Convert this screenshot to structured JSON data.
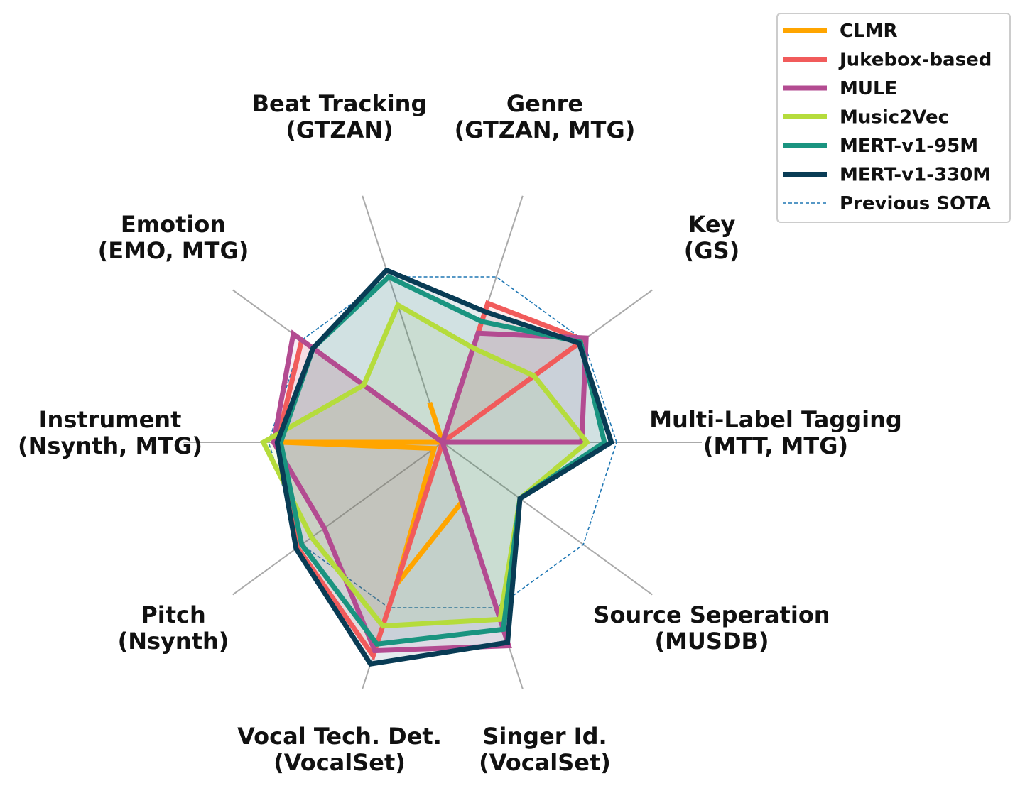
{
  "chart_data": {
    "type": "radar",
    "axes": [
      {
        "line1": "Multi-Label Tagging",
        "line2": "(MTT, MTG)"
      },
      {
        "line1": "Key",
        "line2": "(GS)"
      },
      {
        "line1": "Genre",
        "line2": "(GTZAN, MTG)"
      },
      {
        "line1": "Beat Tracking",
        "line2": "(GTZAN)"
      },
      {
        "line1": "Emotion",
        "line2": "(EMO, MTG)"
      },
      {
        "line1": "Instrument",
        "line2": "(Nsynth, MTG)"
      },
      {
        "line1": "Pitch",
        "line2": "(Nsynth)"
      },
      {
        "line1": "Vocal Tech. Det.",
        "line2": "(VocalSet)"
      },
      {
        "line1": "Singer Id.",
        "line2": "(VocalSet)"
      },
      {
        "line1": "Source Seperation",
        "line2": "(MUSDB)"
      }
    ],
    "rmax": 1.0,
    "reference": {
      "name": "Previous SOTA",
      "color": "#1f77b4",
      "values": [
        1,
        1,
        1,
        1,
        1,
        1,
        1,
        1,
        1,
        1
      ]
    },
    "series": [
      {
        "name": "CLMR",
        "color": "#ffa500",
        "fill": false,
        "values": [
          0.0,
          0.0,
          0.0,
          0.24,
          0.0,
          0.92,
          0.06,
          0.86,
          0.36,
          0.0
        ]
      },
      {
        "name": "Jukebox-based",
        "color": "#f15b5b",
        "fill": true,
        "values": [
          0.0,
          1.0,
          0.84,
          0.0,
          1.0,
          0.95,
          1.03,
          1.29,
          0.0,
          0.0
        ]
      },
      {
        "name": "MULE",
        "color": "#b34b91",
        "fill": true,
        "values": [
          0.8,
          1.02,
          0.66,
          0.0,
          1.06,
          0.97,
          0.84,
          1.26,
          1.23,
          0.0
        ]
      },
      {
        "name": "Music2Vec",
        "color": "#b5dc3c",
        "fill": true,
        "values": [
          0.83,
          0.65,
          0.57,
          0.83,
          0.56,
          1.03,
          0.93,
          1.11,
          1.07,
          0.55
        ]
      },
      {
        "name": "MERT-v1-95M",
        "color": "#1a9480",
        "fill": true,
        "values": [
          0.93,
          0.98,
          0.73,
          1.0,
          0.92,
          0.93,
          1.0,
          1.22,
          1.13,
          0.55
        ]
      },
      {
        "name": "MERT-v1-330M",
        "color": "#093c55",
        "fill": true,
        "values": [
          0.97,
          0.97,
          0.79,
          1.04,
          0.92,
          0.95,
          1.04,
          1.34,
          1.21,
          0.55
        ]
      }
    ],
    "legend_position": "top-right",
    "grid": true
  }
}
